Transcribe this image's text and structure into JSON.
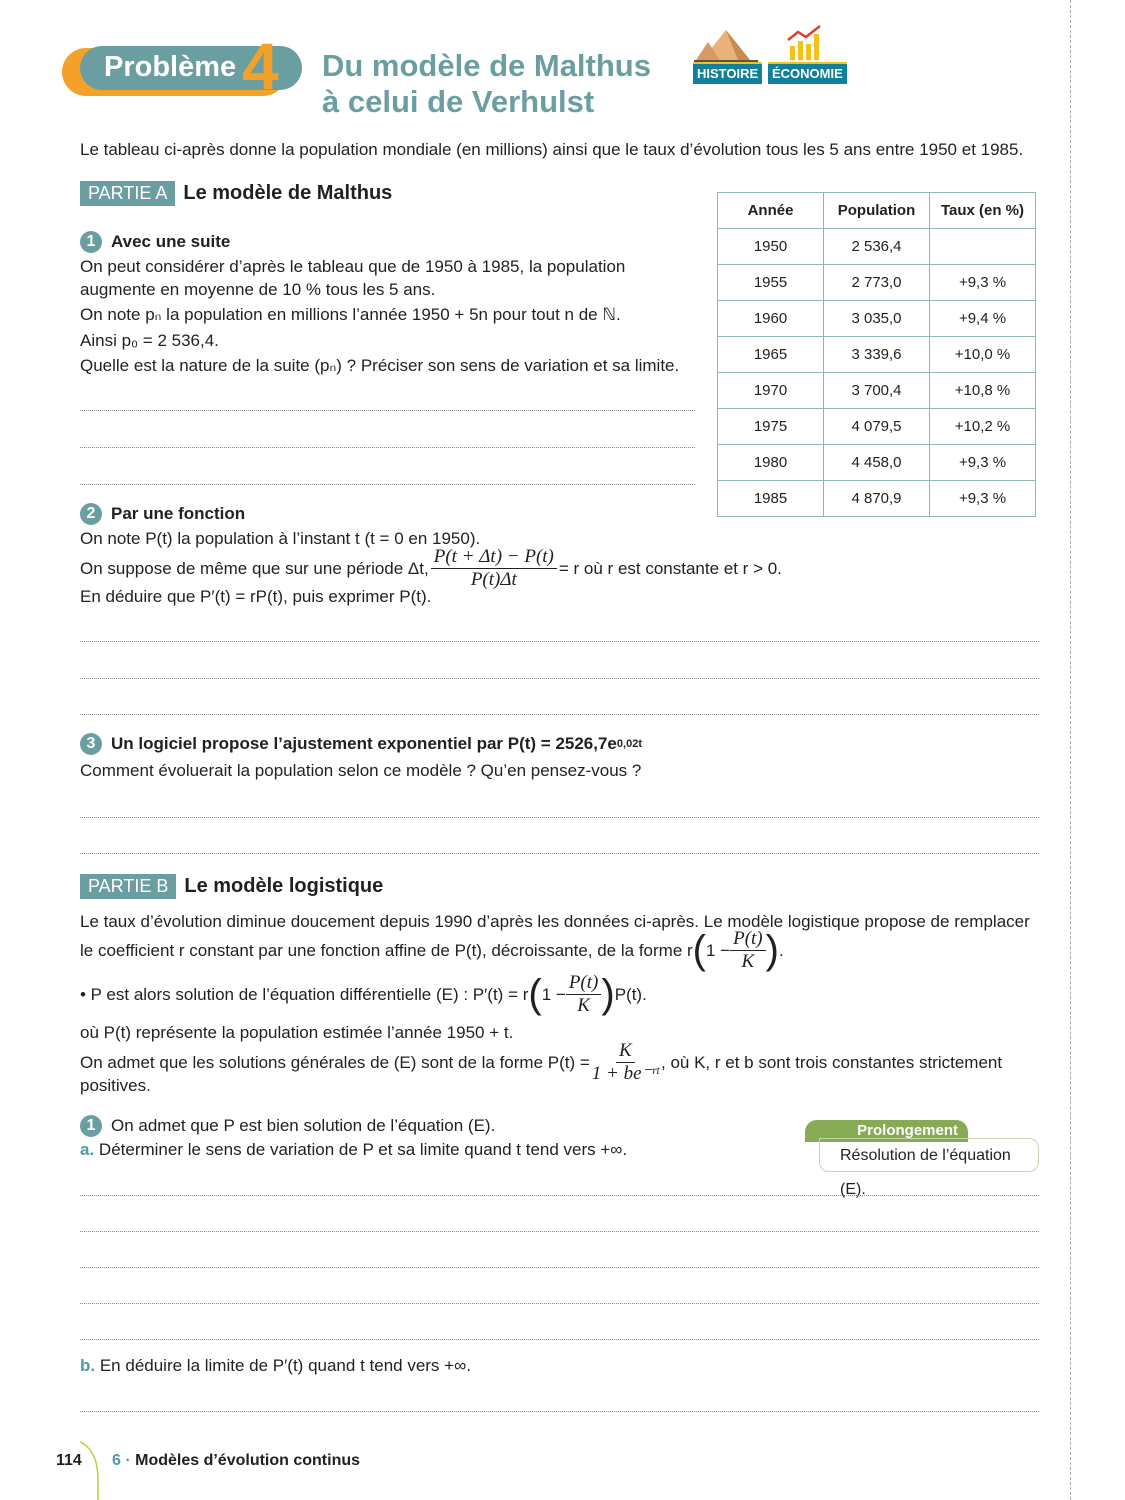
{
  "header": {
    "badge_label": "Problème",
    "badge_number": "4",
    "title_line1": "Du modèle de Malthus",
    "title_line2": "à celui de Verhulst",
    "tags": [
      "HISTOIRE",
      "ÉCONOMIE"
    ],
    "colors": {
      "teal": "#6b9ea1",
      "orange": "#f3a128",
      "tag": "#12809a"
    }
  },
  "intro": "Le tableau ci-après donne la population mondiale (en millions) ainsi que le taux d’évolution tous les 5 ans entre 1950 et 1985.",
  "partA": {
    "label": "PARTIE A",
    "title": "Le modèle de Malthus",
    "q1": {
      "num": "1",
      "title": "Avec une suite",
      "l1": "On peut considérer d’après le tableau que de 1950 à 1985, la population",
      "l2": "augmente en moyenne de 10 % tous les 5 ans.",
      "l3": "On note pₙ la population en millions l’année 1950 + 5n pour tout n de ℕ.",
      "l4": "Ainsi p₀ = 2 536,4.",
      "l5": "Quelle est la nature de la suite (pₙ) ? Préciser son sens de variation et sa limite."
    },
    "q2": {
      "num": "2",
      "title": "Par une fonction",
      "l1": "On note P(t) la population à l’instant t (t = 0 en 1950).",
      "l2a": "On suppose de même que sur une période Δt,",
      "frac_num": "P(t + Δt) − P(t)",
      "frac_den": "P(t)Δt",
      "l2b": "= r où r est constante et r > 0.",
      "l3": "En déduire que P′(t) = rP(t), puis exprimer P(t)."
    },
    "q3": {
      "num": "3",
      "title": "Un logiciel propose l’ajustement exponentiel par P(t) = 2526,7e",
      "exp": "0,02t",
      "l1": "Comment évoluerait la population selon ce modèle ? Qu’en pensez-vous ?"
    }
  },
  "table": {
    "headers": [
      "Année",
      "Population",
      "Taux (en %)"
    ],
    "rows": [
      [
        "1950",
        "2 536,4",
        ""
      ],
      [
        "1955",
        "2 773,0",
        "+9,3 %"
      ],
      [
        "1960",
        "3 035,0",
        "+9,4 %"
      ],
      [
        "1965",
        "3 339,6",
        "+10,0 %"
      ],
      [
        "1970",
        "3 700,4",
        "+10,8 %"
      ],
      [
        "1975",
        "4 079,5",
        "+10,2 %"
      ],
      [
        "1980",
        "4 458,0",
        "+9,3 %"
      ],
      [
        "1985",
        "4 870,9",
        "+9,3 %"
      ]
    ]
  },
  "partB": {
    "label": "PARTIE B",
    "title": "Le modèle logistique",
    "p1": "Le taux d’évolution diminue doucement depuis 1990 d’après les données ci-après. Le modèle logistique propose de remplacer",
    "p2": "le coefficient r constant par une fonction affine de P(t), décroissante, de la forme r",
    "p3a": "• P est alors solution de l’équation différentielle (E) : P′(t) = r",
    "p3b": "P(t).",
    "one_minus": "1 −",
    "fracPK_num": "P(t)",
    "fracPK_den": "K",
    "p4": "où P(t) représente la population estimée l’année 1950 + t.",
    "p5a": "On admet que les solutions générales de (E) sont de la forme P(t) =",
    "fracS_num": "K",
    "fracS_den": "1 + be⁻ʳᵗ",
    "p5b": ", où K, r et b sont trois constantes strictement",
    "p6": "positives.",
    "q1": {
      "num": "1",
      "l1": "On admet que P est bien solution de l’équation (E).",
      "a_letter": "a.",
      "a": "Déterminer le sens de variation de P et sa limite quand t tend vers +∞.",
      "b_letter": "b.",
      "b": "En déduire la limite de P′(t) quand t tend vers +∞."
    },
    "prolongement": {
      "label": "Prolongement",
      "text": "Résolution de l’équation (E)."
    }
  },
  "footer": {
    "page": "114",
    "chapter_num": "6",
    "chapter": "Modèles d’évolution continus"
  }
}
